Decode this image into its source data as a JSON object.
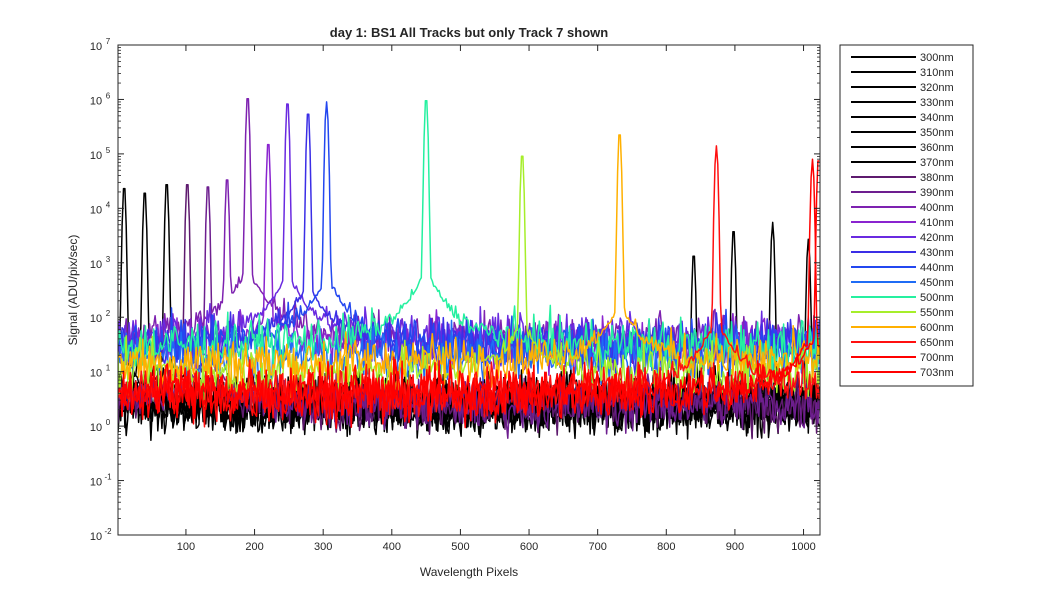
{
  "chart_data": {
    "type": "line",
    "title": "day 1: BS1   All Tracks but only Track 7 shown",
    "xlabel": "Wavelength Pixels",
    "ylabel": "Signal (ADU/pix/sec)",
    "xlim": [
      1,
      1024
    ],
    "ylim_log10": [
      -2,
      7
    ],
    "yscale": "log",
    "x_ticks": [
      100,
      200,
      300,
      400,
      500,
      600,
      700,
      800,
      900,
      1000
    ],
    "y_ticks": [
      {
        "base": "10",
        "exp": "-2"
      },
      {
        "base": "10",
        "exp": "-1"
      },
      {
        "base": "10",
        "exp": "0"
      },
      {
        "base": "10",
        "exp": "1"
      },
      {
        "base": "10",
        "exp": "2"
      },
      {
        "base": "10",
        "exp": "3"
      },
      {
        "base": "10",
        "exp": "4"
      },
      {
        "base": "10",
        "exp": "5"
      },
      {
        "base": "10",
        "exp": "6"
      },
      {
        "base": "10",
        "exp": "7"
      }
    ],
    "legend_position": "outside-right",
    "series": [
      {
        "name": "300nm",
        "color": "#000000",
        "peaks": [
          {
            "x": 10,
            "y": 28000
          }
        ],
        "floor": 2.5
      },
      {
        "name": "310nm",
        "color": "#000000",
        "peaks": [
          {
            "x": 40,
            "y": 23000
          }
        ],
        "floor": 2.5
      },
      {
        "name": "320nm",
        "color": "#000000",
        "peaks": [
          {
            "x": 72,
            "y": 33000
          }
        ],
        "floor": 2.5
      },
      {
        "name": "330nm",
        "color": "#000000",
        "peaks": [
          {
            "x": 840,
            "y": 1600
          }
        ],
        "floor": 2.5
      },
      {
        "name": "340nm",
        "color": "#000000",
        "peaks": [
          {
            "x": 898,
            "y": 4500
          }
        ],
        "floor": 2.5
      },
      {
        "name": "350nm",
        "color": "#000000",
        "peaks": [
          {
            "x": 955,
            "y": 5500
          }
        ],
        "floor": 2.5
      },
      {
        "name": "360nm",
        "color": "#000000",
        "peaks": [
          {
            "x": 1007,
            "y": 2700
          }
        ],
        "floor": 2.5
      },
      {
        "name": "370nm",
        "color": "#000000",
        "peaks": [],
        "floor": 2.5
      },
      {
        "name": "380nm",
        "color": "#5e1a6e",
        "peaks": [
          {
            "x": 102,
            "y": 33000
          }
        ],
        "floor": 2.5
      },
      {
        "name": "390nm",
        "color": "#6d1e8f",
        "peaks": [
          {
            "x": 132,
            "y": 30000
          }
        ],
        "floor": 2.5
      },
      {
        "name": "400nm",
        "color": "#7e22b0",
        "peaks": [
          {
            "x": 160,
            "y": 40000
          },
          {
            "x": 190,
            "y": 1250000
          }
        ],
        "floor": 40
      },
      {
        "name": "410nm",
        "color": "#8a24cf",
        "peaks": [
          {
            "x": 220,
            "y": 180000
          }
        ],
        "floor": 30
      },
      {
        "name": "420nm",
        "color": "#6a2ae0",
        "peaks": [
          {
            "x": 248,
            "y": 1000000
          }
        ],
        "floor": 40
      },
      {
        "name": "430nm",
        "color": "#3b2ee6",
        "peaks": [
          {
            "x": 278,
            "y": 650000
          }
        ],
        "floor": 30
      },
      {
        "name": "440nm",
        "color": "#2347f0",
        "peaks": [
          {
            "x": 305,
            "y": 900000
          }
        ],
        "floor": 30
      },
      {
        "name": "450nm",
        "color": "#1f6cf5",
        "peaks": [],
        "floor": 20
      },
      {
        "name": "500nm",
        "color": "#25f0a0",
        "peaks": [
          {
            "x": 450,
            "y": 1150000
          }
        ],
        "floor": 30
      },
      {
        "name": "550nm",
        "color": "#a6ee2a",
        "peaks": [
          {
            "x": 590,
            "y": 110000
          }
        ],
        "floor": 10
      },
      {
        "name": "600nm",
        "color": "#ffb000",
        "peaks": [
          {
            "x": 732,
            "y": 270000
          }
        ],
        "floor": 15
      },
      {
        "name": "650nm",
        "color": "#ff1010",
        "peaks": [
          {
            "x": 873,
            "y": 140000
          }
        ],
        "floor": 4
      },
      {
        "name": "700nm",
        "color": "#ff0000",
        "peaks": [
          {
            "x": 1013,
            "y": 80000
          }
        ],
        "floor": 4
      },
      {
        "name": "703nm",
        "color": "#ff0000",
        "peaks": [
          {
            "x": 1022,
            "y": 90000
          }
        ],
        "floor": 4
      }
    ]
  }
}
